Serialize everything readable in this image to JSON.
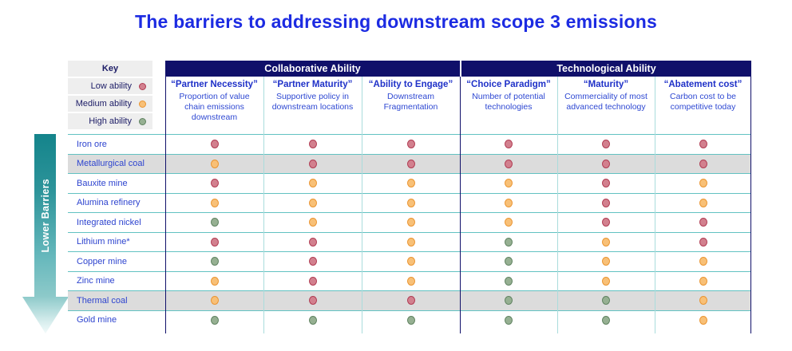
{
  "title": "The barriers to addressing downstream scope 3 emissions",
  "arrow_label": "Lower Barriers",
  "key": {
    "header": "Key",
    "items": [
      {
        "label": "Low ability",
        "level": "low"
      },
      {
        "label": "Medium ability",
        "level": "medium"
      },
      {
        "label": "High ability",
        "level": "high"
      }
    ]
  },
  "groups": [
    {
      "label": "Collaborative Ability",
      "columns": [
        {
          "title": "“Partner Necessity”",
          "description": "Proportion of value chain emissions downstream"
        },
        {
          "title": "“Partner Maturity”",
          "description": "Supportive policy in downstream locations"
        },
        {
          "title": "“Ability to Engage”",
          "description": "Downstream Fragmentation"
        }
      ]
    },
    {
      "label": "Technological Ability",
      "columns": [
        {
          "title": "“Choice Paradigm”",
          "description": "Number of potential technologies"
        },
        {
          "title": "“Maturity”",
          "description": "Commerciality of most advanced technology"
        },
        {
          "title": "“Abatement cost”",
          "description": "Carbon cost to be competitive today"
        }
      ]
    }
  ],
  "rows": [
    {
      "label": "Iron ore",
      "shaded": false,
      "values": [
        "low",
        "low",
        "low",
        "low",
        "low",
        "low"
      ]
    },
    {
      "label": "Metallurgical coal",
      "shaded": true,
      "values": [
        "medium",
        "low",
        "low",
        "low",
        "low",
        "low"
      ]
    },
    {
      "label": "Bauxite mine",
      "shaded": false,
      "values": [
        "low",
        "medium",
        "medium",
        "medium",
        "low",
        "medium"
      ]
    },
    {
      "label": "Alumina refinery",
      "shaded": false,
      "values": [
        "medium",
        "medium",
        "medium",
        "medium",
        "low",
        "medium"
      ]
    },
    {
      "label": "Integrated nickel",
      "shaded": false,
      "values": [
        "high",
        "medium",
        "medium",
        "medium",
        "low",
        "low"
      ]
    },
    {
      "label": "Lithium mine*",
      "shaded": false,
      "values": [
        "low",
        "low",
        "medium",
        "high",
        "medium",
        "low"
      ]
    },
    {
      "label": "Copper mine",
      "shaded": false,
      "values": [
        "high",
        "low",
        "medium",
        "high",
        "medium",
        "medium"
      ]
    },
    {
      "label": "Zinc mine",
      "shaded": false,
      "values": [
        "medium",
        "low",
        "medium",
        "high",
        "medium",
        "medium"
      ]
    },
    {
      "label": "Thermal coal",
      "shaded": true,
      "values": [
        "medium",
        "low",
        "low",
        "high",
        "high",
        "medium"
      ]
    },
    {
      "label": "Gold mine",
      "shaded": false,
      "values": [
        "high",
        "high",
        "high",
        "high",
        "high",
        "medium"
      ]
    }
  ],
  "colors": {
    "title": "#1c2be2",
    "navy": "#10106a",
    "teal_line": "#62c2c2",
    "teal_line_light": "#aadcdc",
    "shaded_row": "#dcdcdc",
    "key_background": "#eeeeee",
    "low": {
      "fill": "#d2808e",
      "border": "#b03b52"
    },
    "medium": {
      "fill": "#f8c077",
      "border": "#ea9430"
    },
    "high": {
      "fill": "#96b092",
      "border": "#5f8260"
    }
  },
  "chart_data": {
    "type": "heatmap",
    "title": "The barriers to addressing downstream scope 3 emissions",
    "column_groups": [
      {
        "name": "Collaborative Ability",
        "columns": [
          "Partner Necessity",
          "Partner Maturity",
          "Ability to Engage"
        ]
      },
      {
        "name": "Technological Ability",
        "columns": [
          "Choice Paradigm",
          "Maturity",
          "Abatement cost"
        ]
      }
    ],
    "columns": [
      "Partner Necessity",
      "Partner Maturity",
      "Ability to Engage",
      "Choice Paradigm",
      "Maturity",
      "Abatement cost"
    ],
    "rows": [
      "Iron ore",
      "Metallurgical coal",
      "Bauxite mine",
      "Alumina refinery",
      "Integrated nickel",
      "Lithium mine*",
      "Copper mine",
      "Zinc mine",
      "Thermal coal",
      "Gold mine"
    ],
    "values": [
      [
        "low",
        "low",
        "low",
        "low",
        "low",
        "low"
      ],
      [
        "medium",
        "low",
        "low",
        "low",
        "low",
        "low"
      ],
      [
        "low",
        "medium",
        "medium",
        "medium",
        "low",
        "medium"
      ],
      [
        "medium",
        "medium",
        "medium",
        "medium",
        "low",
        "medium"
      ],
      [
        "high",
        "medium",
        "medium",
        "medium",
        "low",
        "low"
      ],
      [
        "low",
        "low",
        "medium",
        "high",
        "medium",
        "low"
      ],
      [
        "high",
        "low",
        "medium",
        "high",
        "medium",
        "medium"
      ],
      [
        "medium",
        "low",
        "medium",
        "high",
        "medium",
        "medium"
      ],
      [
        "medium",
        "low",
        "low",
        "high",
        "high",
        "medium"
      ],
      [
        "high",
        "high",
        "high",
        "high",
        "high",
        "medium"
      ]
    ],
    "legend": {
      "low": "Low ability",
      "medium": "Medium ability",
      "high": "High ability"
    },
    "annotation": "Lower Barriers (arrow pointing down alongside rows)"
  }
}
